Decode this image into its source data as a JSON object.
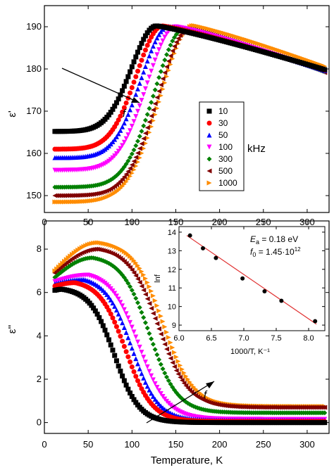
{
  "chart_data": [
    {
      "type": "scatter",
      "panel": "top",
      "xlabel": "",
      "ylabel": "ε'",
      "xlim": [
        0,
        325
      ],
      "ylim": [
        146,
        195
      ],
      "xticks": [
        "0",
        "50",
        "100",
        "150",
        "200",
        "250",
        "300"
      ],
      "yticks": [
        "150",
        "160",
        "170",
        "180",
        "190"
      ],
      "legend": {
        "placement": "center-right",
        "unit": "kHz"
      },
      "annotation": "f",
      "series": [
        {
          "name": "10",
          "marker": "square",
          "color": "#000000",
          "start": 165.2,
          "peakT": 128,
          "peakV": 190.2,
          "end": 179.7,
          "w": 40
        },
        {
          "name": "30",
          "marker": "circle",
          "color": "#ff0000",
          "start": 161.0,
          "peakT": 135,
          "peakV": 190.2,
          "end": 179.6,
          "w": 42
        },
        {
          "name": "50",
          "marker": "triangle-up",
          "color": "#0000ff",
          "start": 159.0,
          "peakT": 142,
          "peakV": 190.1,
          "end": 179.5,
          "w": 44
        },
        {
          "name": "100",
          "marker": "triangle-down",
          "color": "#ff00ff",
          "start": 156.0,
          "peakT": 150,
          "peakV": 190.0,
          "end": 179.3,
          "w": 46
        },
        {
          "name": "300",
          "marker": "diamond",
          "color": "#008000",
          "start": 152.0,
          "peakT": 160,
          "peakV": 189.6,
          "end": 179.2,
          "w": 48
        },
        {
          "name": "500",
          "marker": "triangle-left",
          "color": "#800000",
          "start": 150.0,
          "peakT": 165,
          "peakV": 189.5,
          "end": 179.0,
          "w": 50
        },
        {
          "name": "1000",
          "marker": "triangle-right",
          "color": "#ff8c00",
          "start": 148.5,
          "peakT": 170,
          "peakV": 190.3,
          "end": 180.5,
          "w": 52
        }
      ]
    },
    {
      "type": "scatter",
      "panel": "bottom",
      "xlabel": "Temperature, K",
      "ylabel": "ε''",
      "xlim": [
        0,
        325
      ],
      "ylim": [
        -0.5,
        9.3
      ],
      "xticks": [
        "0",
        "50",
        "100",
        "150",
        "200",
        "250",
        "300"
      ],
      "yticks": [
        "0",
        "2",
        "4",
        "6",
        "8"
      ],
      "annotation": "f",
      "series": [
        {
          "name": "10",
          "color": "#000000",
          "start": 6.1,
          "peakT": 20,
          "peakV": 6.15,
          "tail": 0.0,
          "mid": 80,
          "w": 14
        },
        {
          "name": "30",
          "color": "#ff0000",
          "start": 6.3,
          "peakT": 35,
          "peakV": 6.45,
          "tail": 0.05,
          "mid": 93,
          "w": 15
        },
        {
          "name": "50",
          "color": "#0000ff",
          "start": 6.4,
          "peakT": 45,
          "peakV": 6.6,
          "tail": 0.1,
          "mid": 100,
          "w": 15
        },
        {
          "name": "100",
          "color": "#ff00ff",
          "start": 6.5,
          "peakT": 50,
          "peakV": 6.8,
          "tail": 0.15,
          "mid": 108,
          "w": 16
        },
        {
          "name": "300",
          "color": "#008000",
          "start": 6.7,
          "peakT": 55,
          "peakV": 7.6,
          "tail": 0.45,
          "mid": 120,
          "w": 16
        },
        {
          "name": "500",
          "color": "#800000",
          "start": 6.9,
          "peakT": 60,
          "peakV": 8.0,
          "tail": 0.7,
          "mid": 130,
          "w": 17
        },
        {
          "name": "1000",
          "color": "#ff8c00",
          "start": 7.0,
          "peakT": 62,
          "peakV": 8.3,
          "tail": 0.75,
          "mid": 136,
          "w": 17
        }
      ]
    },
    {
      "type": "scatter",
      "panel": "inset",
      "xlabel": "1000/T, K⁻¹",
      "ylabel": "lnf",
      "xlim": [
        6.0,
        8.25
      ],
      "ylim": [
        8.7,
        14.3
      ],
      "xticks": [
        "6.0",
        "6.5",
        "7.0",
        "7.5",
        "8.0"
      ],
      "yticks": [
        "9",
        "10",
        "11",
        "12",
        "13",
        "14"
      ],
      "points": [
        {
          "x": 6.17,
          "y": 13.82
        },
        {
          "x": 6.37,
          "y": 13.13
        },
        {
          "x": 6.57,
          "y": 12.61
        },
        {
          "x": 6.98,
          "y": 11.51
        },
        {
          "x": 7.32,
          "y": 10.82
        },
        {
          "x": 7.58,
          "y": 10.31
        },
        {
          "x": 8.1,
          "y": 9.21
        }
      ],
      "fit_line": {
        "x": [
          6.12,
          8.12
        ],
        "y": [
          13.82,
          9.05
        ]
      },
      "annotation_ea": {
        "symbol": "E",
        "sub": "a",
        "text": " = 0.18 eV"
      },
      "annotation_f0": {
        "symbol": "f",
        "sub": "0",
        "text": " = 1.45·10",
        "sup": "12"
      }
    }
  ]
}
